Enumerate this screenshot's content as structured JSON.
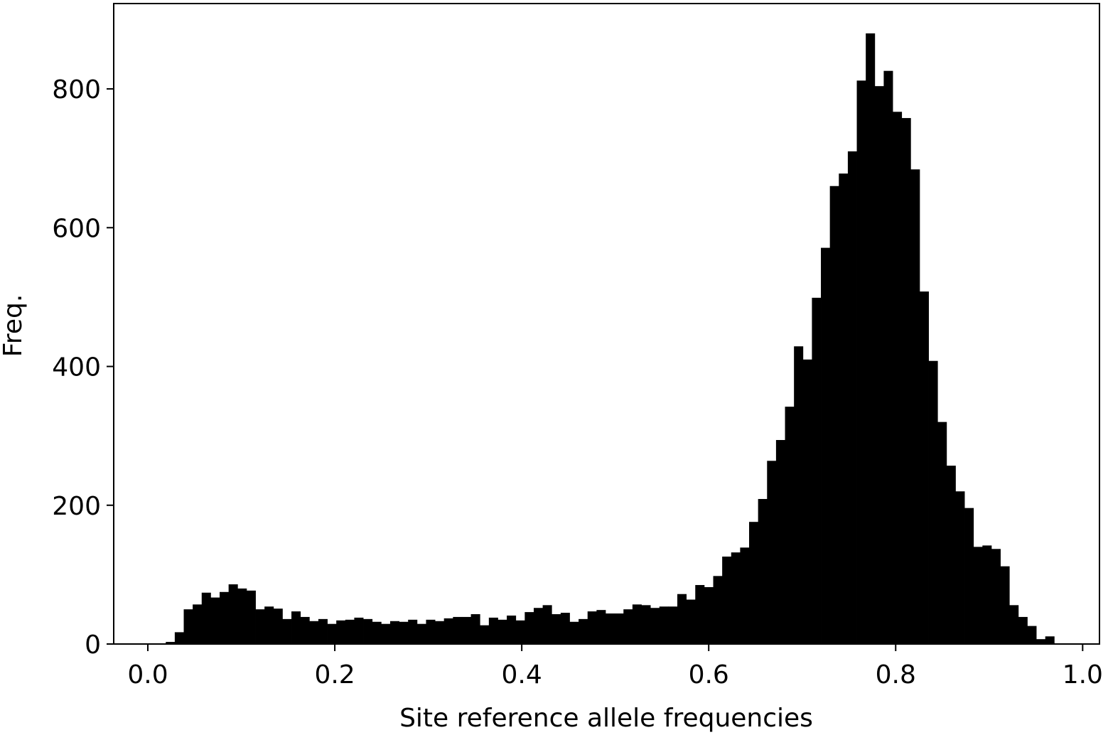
{
  "chart_data": {
    "type": "histogram",
    "xlabel": "Site reference allele frequencies",
    "ylabel": "Freq.",
    "color": "#000000",
    "bins": [
      0,
      0.0096,
      0.0192,
      0.0288,
      0.0384,
      0.048,
      0.0576,
      0.0672,
      0.0768,
      0.0864,
      0.096,
      0.1056,
      0.1152,
      0.1248,
      0.1344,
      0.144,
      0.1536,
      0.1632,
      0.1728,
      0.1824,
      0.192,
      0.2016,
      0.2112,
      0.2208,
      0.2304,
      0.24,
      0.2496,
      0.2592,
      0.2688,
      0.2784,
      0.288,
      0.2976,
      0.3072,
      0.3168,
      0.3264,
      0.336,
      0.3456,
      0.3552,
      0.3648,
      0.3744,
      0.384,
      0.3936,
      0.4032,
      0.4128,
      0.4224,
      0.432,
      0.4416,
      0.4512,
      0.4608,
      0.4704,
      0.48,
      0.4896,
      0.4992,
      0.5088,
      0.5184,
      0.528,
      0.5376,
      0.5472,
      0.5568,
      0.5664,
      0.576,
      0.5856,
      0.5952,
      0.6048,
      0.6144,
      0.624,
      0.6336,
      0.6432,
      0.6528,
      0.6624,
      0.672,
      0.6816,
      0.6912,
      0.7008,
      0.7104,
      0.72,
      0.7296,
      0.7392,
      0.7488,
      0.7584,
      0.768,
      0.7776,
      0.7872,
      0.7968,
      0.8064,
      0.816,
      0.8256,
      0.8352,
      0.8448,
      0.8544,
      0.864,
      0.8736,
      0.8832,
      0.8928,
      0.9024,
      0.912,
      0.9216,
      0.9312,
      0.9408,
      0.9504,
      0.96,
      0.9696
    ],
    "values": [
      0,
      1,
      3,
      17,
      50,
      57,
      74,
      67,
      75,
      86,
      80,
      77,
      50,
      54,
      51,
      36,
      47,
      39,
      33,
      36,
      29,
      34,
      35,
      38,
      36,
      32,
      29,
      33,
      32,
      35,
      29,
      35,
      33,
      37,
      39,
      39,
      43,
      27,
      38,
      35,
      41,
      34,
      46,
      52,
      56,
      43,
      45,
      32,
      36,
      47,
      49,
      44,
      44,
      50,
      57,
      56,
      52,
      54,
      54,
      72,
      64,
      85,
      82,
      98,
      126,
      132,
      139,
      176,
      209,
      264,
      294,
      342,
      429,
      410,
      499,
      571,
      660,
      678,
      710,
      812,
      880,
      804,
      826,
      767,
      758,
      684,
      508,
      408,
      320,
      257,
      220,
      196,
      140,
      142,
      137,
      112,
      56,
      39,
      26,
      7,
      11
    ],
    "xlim": [
      -0.0365,
      1.018
    ],
    "ylim": [
      0,
      923
    ],
    "xticks": [
      {
        "value": 0,
        "label": "0.0"
      },
      0.2,
      0.4,
      0.6,
      0.8,
      {
        "value": 1,
        "label": "1.0"
      }
    ],
    "yticks": [
      0,
      200,
      400,
      600,
      800
    ]
  }
}
